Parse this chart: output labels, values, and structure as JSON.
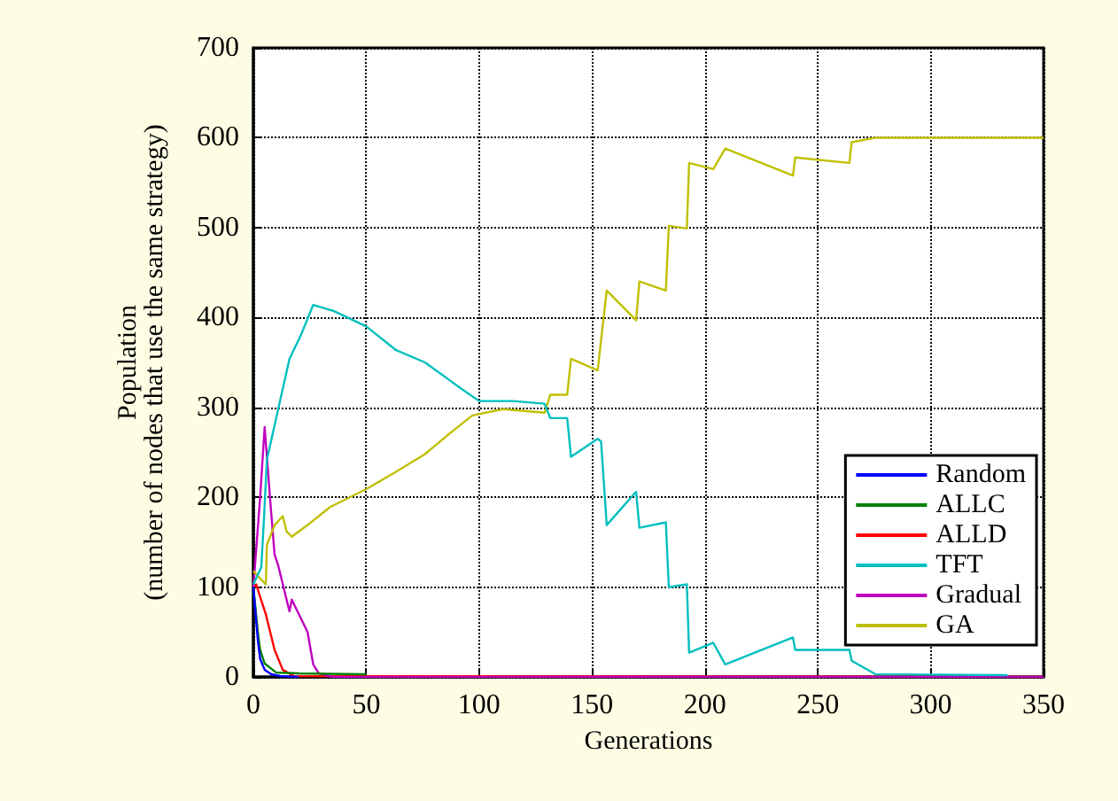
{
  "chart_data": {
    "type": "line",
    "xlabel": "Generations",
    "ylabel": "Population\n(number of nodes that use the same strategy)",
    "xlim": [
      0,
      350
    ],
    "ylim": [
      0,
      700
    ],
    "xticks": [
      0,
      50,
      100,
      150,
      200,
      250,
      300,
      350
    ],
    "yticks": [
      0,
      100,
      200,
      300,
      400,
      500,
      600,
      700
    ],
    "grid": true,
    "legend": "bottom right",
    "marker": "none",
    "line_style": "solid",
    "series": [
      {
        "name": "Random",
        "color": "#0000ff",
        "x": [
          0,
          1,
          2,
          3,
          5,
          8,
          12,
          20
        ],
        "values": [
          100,
          70,
          40,
          20,
          8,
          3,
          1,
          0
        ]
      },
      {
        "name": "ALLC",
        "color": "#008000",
        "x": [
          0,
          1,
          2,
          3,
          5,
          10,
          20,
          50
        ],
        "values": [
          100,
          75,
          50,
          30,
          15,
          5,
          4,
          3
        ]
      },
      {
        "name": "ALLD",
        "color": "#ff0000",
        "x": [
          0,
          1.3,
          2.6,
          5.5,
          9.4,
          13,
          18,
          350
        ],
        "values": [
          100,
          103,
          92,
          70,
          30,
          8,
          1,
          0
        ]
      },
      {
        "name": "TFT",
        "color": "#00bfbf",
        "x": [
          0,
          3.5,
          4.7,
          6,
          16,
          21,
          26.5,
          35.7,
          50,
          63,
          76,
          92,
          100,
          115,
          129,
          131.5,
          139,
          140.7,
          152.5,
          154,
          156.5,
          169.5,
          171,
          182.7,
          184,
          192,
          193,
          203.7,
          209,
          239,
          240,
          264,
          265,
          275.6,
          334
        ],
        "values": [
          103,
          122,
          176,
          242,
          354,
          380,
          414,
          407,
          390,
          364,
          350,
          321,
          307,
          307,
          304,
          288,
          288,
          245,
          265,
          262,
          169,
          206,
          166,
          172,
          100,
          103,
          27,
          38,
          14,
          44,
          30,
          30,
          18,
          3,
          2
        ]
      },
      {
        "name": "Gradual",
        "color": "#bf00bf",
        "x": [
          0,
          3,
          5,
          7.6,
          9.4,
          11,
          16,
          17,
          24,
          26.5,
          29,
          35,
          350
        ],
        "values": [
          100,
          200,
          278,
          192,
          136,
          124,
          73,
          86,
          50,
          14,
          4,
          0,
          0
        ]
      },
      {
        "name": "GA",
        "color": "#bfbf00",
        "x": [
          0,
          5.5,
          6,
          9.4,
          13,
          14.7,
          17,
          24,
          34,
          50,
          63,
          76,
          87,
          97,
          110.5,
          129,
          131.5,
          139,
          140.7,
          152.5,
          156.5,
          169.5,
          171,
          182.7,
          184,
          192,
          193,
          203.7,
          209,
          239,
          240,
          264,
          265,
          275.6,
          350
        ],
        "values": [
          118,
          103,
          147,
          169,
          179,
          162,
          156,
          169,
          189,
          209,
          228,
          248,
          271,
          291,
          298,
          294,
          314,
          314,
          354,
          341,
          430,
          397,
          440,
          430,
          502,
          499,
          572,
          565,
          588,
          558,
          578,
          572,
          595,
          600,
          600
        ]
      }
    ]
  }
}
